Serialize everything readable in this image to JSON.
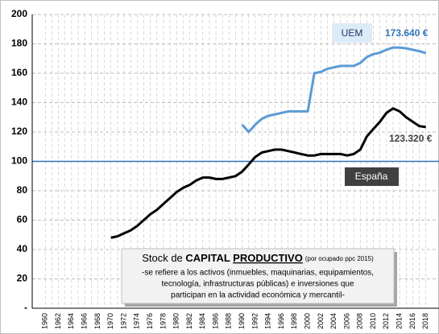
{
  "chart_data": {
    "type": "line",
    "x": [
      1960,
      1961,
      1962,
      1963,
      1964,
      1965,
      1966,
      1967,
      1968,
      1969,
      1970,
      1971,
      1972,
      1973,
      1974,
      1975,
      1976,
      1977,
      1978,
      1979,
      1980,
      1981,
      1982,
      1983,
      1984,
      1985,
      1986,
      1987,
      1988,
      1989,
      1990,
      1991,
      1992,
      1993,
      1994,
      1995,
      1996,
      1997,
      1998,
      1999,
      2000,
      2001,
      2002,
      2003,
      2004,
      2005,
      2006,
      2007,
      2008,
      2009,
      2010,
      2011,
      2012,
      2013,
      2014,
      2015,
      2016,
      2017,
      2018
    ],
    "series": [
      {
        "name": "UEM",
        "color": "#5b9bd5",
        "values": [
          null,
          null,
          null,
          null,
          null,
          null,
          null,
          null,
          null,
          null,
          null,
          null,
          null,
          null,
          null,
          null,
          null,
          null,
          null,
          null,
          null,
          null,
          null,
          null,
          null,
          null,
          null,
          null,
          null,
          null,
          125,
          120,
          125,
          129,
          131,
          132,
          133,
          134,
          134,
          134,
          134,
          160,
          161,
          163,
          164,
          165,
          165,
          165,
          167,
          171,
          173,
          174,
          176,
          177.5,
          177.5,
          177,
          176,
          175,
          173.64
        ],
        "end_label": "173.640 €"
      },
      {
        "name": "España",
        "color": "#000000",
        "values": [
          null,
          null,
          null,
          null,
          null,
          null,
          null,
          null,
          null,
          null,
          48,
          49,
          51,
          53,
          56,
          60,
          64,
          67,
          71,
          75,
          79,
          82,
          84,
          87,
          89,
          89,
          88,
          88,
          89,
          90,
          93,
          98,
          103,
          106,
          107,
          108,
          108,
          107,
          106,
          105,
          104,
          104,
          105,
          105,
          105,
          105,
          104,
          105,
          108,
          117,
          122,
          127,
          133,
          136,
          134,
          130,
          127,
          124,
          123.32
        ],
        "end_label": "123.320 €"
      }
    ],
    "reference_line": {
      "value": 100,
      "color": "#2e75b6"
    },
    "xlim": [
      1958,
      2020
    ],
    "xticks": [
      1960,
      1962,
      1964,
      1966,
      1968,
      1970,
      1972,
      1974,
      1976,
      1978,
      1980,
      1982,
      1984,
      1986,
      1988,
      1990,
      1992,
      1994,
      1996,
      1998,
      2000,
      2002,
      2004,
      2006,
      2008,
      2010,
      2012,
      2014,
      2016,
      2018
    ],
    "ylim": [
      0,
      200
    ],
    "yticks": [
      {
        "value": 0,
        "label": "-"
      },
      20,
      40,
      60,
      80,
      100,
      120,
      140,
      160,
      180,
      200
    ],
    "grid": true,
    "annotation": {
      "prefix": "Stock de ",
      "bold": "CAPITAL ",
      "bold_underlined": "PRODUCTIVO",
      "small": "(por ocupado ppc 2015)",
      "lines": [
        "-se refiere a los activos (inmuebles, maquinarias, equipamientos,",
        "tecnología, infrastructuras públicas) e inversiones que",
        "participan en la actividad económica y mercantil-"
      ]
    }
  }
}
